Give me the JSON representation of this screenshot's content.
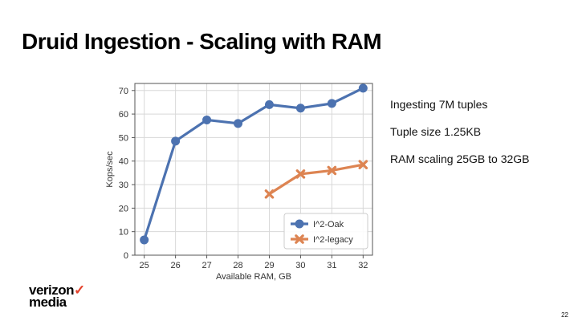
{
  "slide": {
    "title": "Druid Ingestion - Scaling with RAM",
    "bullets": [
      "Ingesting 7M tuples",
      "Tuple size 1.25KB",
      "RAM scaling 25GB to 32GB"
    ],
    "logo_line1": "verizon",
    "logo_check": "✓",
    "logo_line2": "media",
    "page_number": "22"
  },
  "chart_data": {
    "type": "line",
    "x": [
      25,
      26,
      27,
      28,
      29,
      30,
      31,
      32
    ],
    "series": [
      {
        "name": "I^2-Oak",
        "values": [
          6.5,
          48.5,
          57.5,
          56,
          64,
          62.5,
          64.5,
          71
        ],
        "color": "#4c72b0",
        "marker": "circle"
      },
      {
        "name": "I^2-legacy",
        "values": [
          null,
          null,
          null,
          null,
          26,
          34.5,
          36,
          38.5
        ],
        "color": "#dd8452",
        "marker": "x"
      }
    ],
    "xlabel": "Available RAM, GB",
    "ylabel": "Kops/sec",
    "xlim": [
      24.7,
      32.3
    ],
    "ylim": [
      0,
      73
    ],
    "yticks": [
      0,
      10,
      20,
      30,
      40,
      50,
      60,
      70
    ],
    "xticks": [
      25,
      26,
      27,
      28,
      29,
      30,
      31,
      32
    ],
    "grid": true,
    "legend": "bottom-right"
  }
}
